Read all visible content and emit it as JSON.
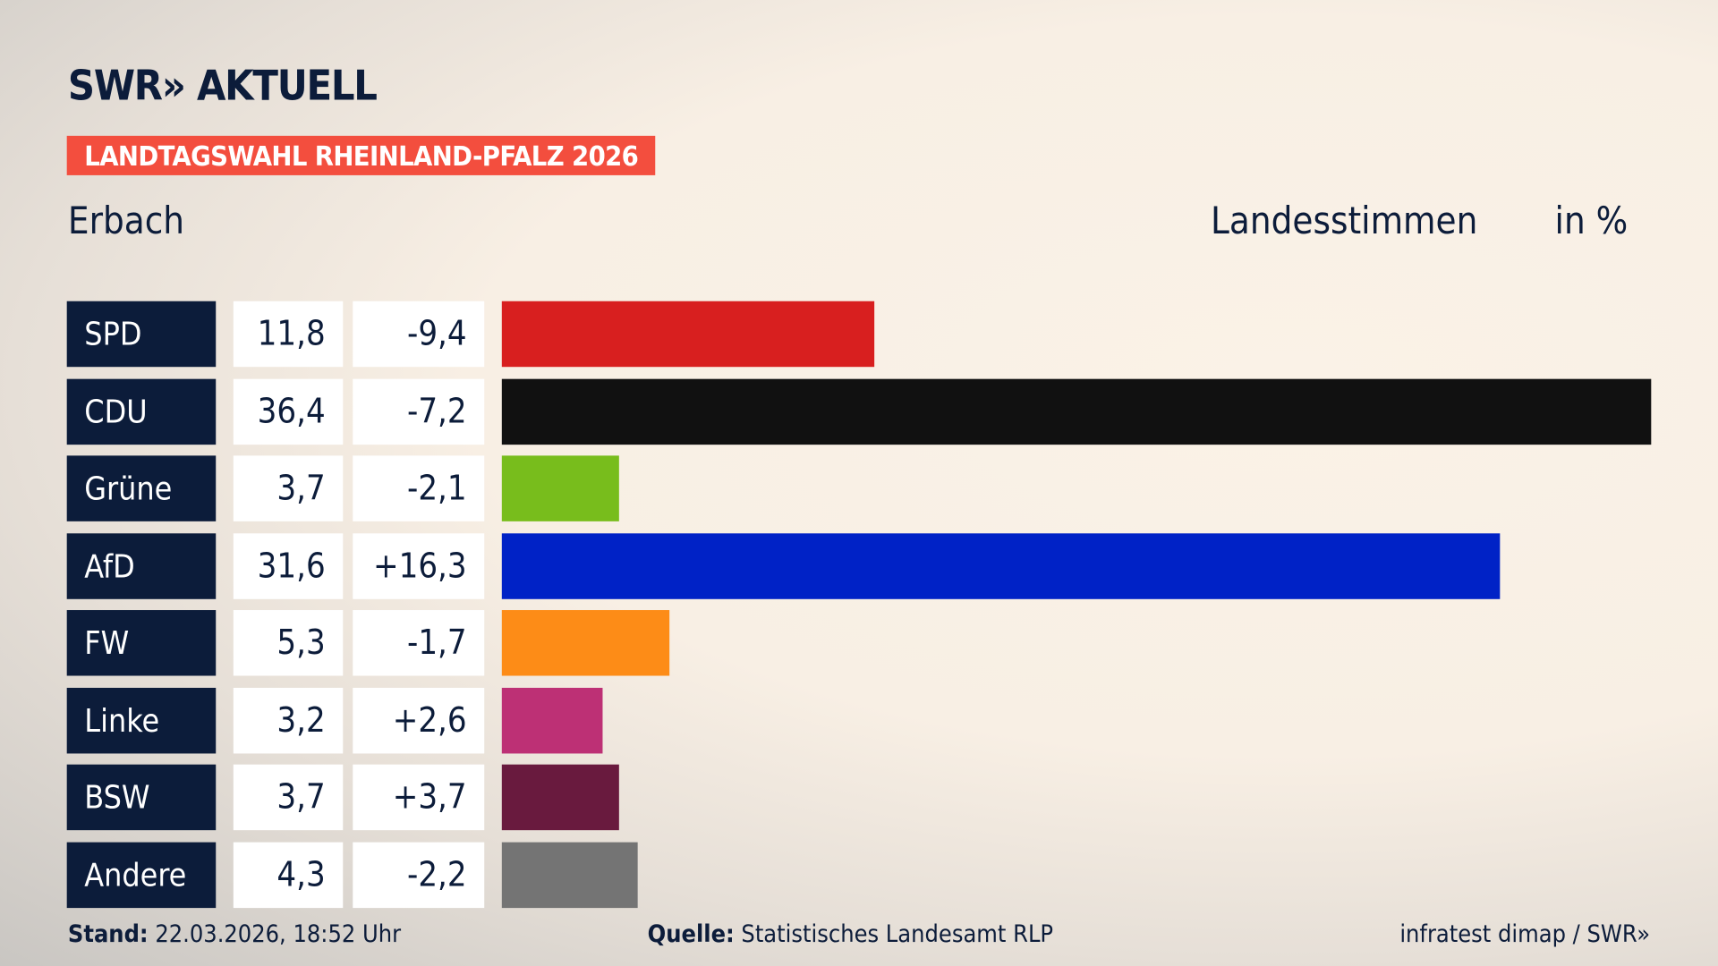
{
  "header": {
    "logo": "SWR» AKTUELL",
    "badge": "LANDTAGSWAHL RHEINLAND-PFALZ 2026",
    "place": "Erbach",
    "vote_type": "Landesstimmen",
    "unit": "in %"
  },
  "chart_data": {
    "type": "bar",
    "orientation": "horizontal",
    "categories": [
      "SPD",
      "CDU",
      "Grüne",
      "AfD",
      "FW",
      "Linke",
      "BSW",
      "Andere"
    ],
    "values": [
      11.8,
      36.4,
      3.7,
      31.6,
      5.3,
      3.2,
      3.7,
      4.3
    ],
    "values_label": [
      "11,8",
      "36,4",
      "3,7",
      "31,6",
      "5,3",
      "3,2",
      "3,7",
      "4,3"
    ],
    "diff_label": [
      "-9,4",
      "-7,2",
      "-2,1",
      "+16,3",
      "-1,7",
      "+2,6",
      "+3,7",
      "-2,2"
    ],
    "colors": [
      "#d81f1f",
      "#111111",
      "#78bd1c",
      "#0022c6",
      "#fd8c17",
      "#bd3075",
      "#691a3e",
      "#747474"
    ]
  },
  "footer": {
    "stand_label": "Stand:",
    "stand_value": "22.03.2026, 18:52 Uhr",
    "source_label": "Quelle:",
    "source_value": "Statistisches Landesamt RLP",
    "credit": "infratest dimap / SWR»"
  }
}
